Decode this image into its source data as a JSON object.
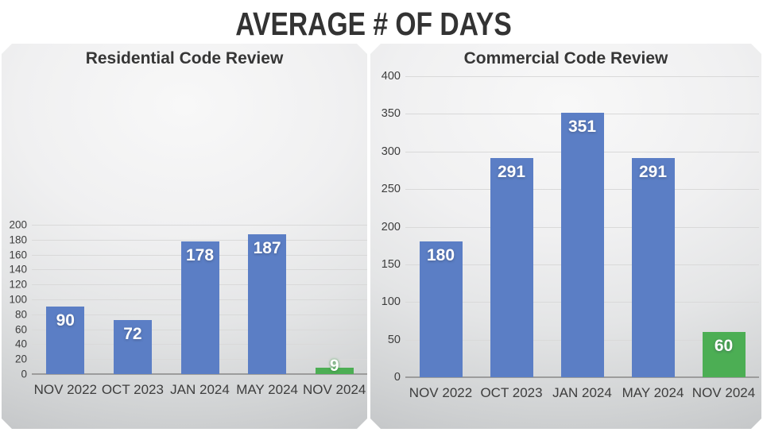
{
  "slide": {
    "title": "AVERAGE # OF DAYS"
  },
  "colors": {
    "bar_blue": "#5B7EC5",
    "bar_green": "#4CAE54",
    "value_label": "#FFFFFF",
    "axis_text": "#3D3D3D",
    "gridline": "#D9D9D9",
    "title_text": "#333333"
  },
  "chart_data": [
    {
      "type": "bar",
      "title": "Residential Code Review",
      "categories": [
        "NOV 2022",
        "OCT 2023",
        "JAN 2024",
        "MAY 2024",
        "NOV 2024"
      ],
      "values": [
        90,
        72,
        178,
        187,
        9
      ],
      "value_labels": [
        "90",
        "72",
        "178",
        "187",
        "9"
      ],
      "bar_colors": [
        "#5B7EC5",
        "#5B7EC5",
        "#5B7EC5",
        "#5B7EC5",
        "#4CAE54"
      ],
      "ylim": [
        0,
        200
      ],
      "yticks": [
        0,
        20,
        40,
        60,
        80,
        100,
        120,
        140,
        160,
        180,
        200
      ],
      "grid": true,
      "legend": "none",
      "xlabel": "",
      "ylabel": ""
    },
    {
      "type": "bar",
      "title": "Commercial Code Review",
      "categories": [
        "NOV 2022",
        "OCT 2023",
        "JAN 2024",
        "MAY 2024",
        "NOV 2024"
      ],
      "values": [
        180,
        291,
        351,
        291,
        60
      ],
      "value_labels": [
        "180",
        "291",
        "351",
        "291",
        "60"
      ],
      "bar_colors": [
        "#5B7EC5",
        "#5B7EC5",
        "#5B7EC5",
        "#5B7EC5",
        "#4CAE54"
      ],
      "ylim": [
        0,
        400
      ],
      "yticks": [
        0,
        50,
        100,
        150,
        200,
        250,
        300,
        350,
        400
      ],
      "grid": true,
      "legend": "none",
      "xlabel": "",
      "ylabel": ""
    }
  ]
}
